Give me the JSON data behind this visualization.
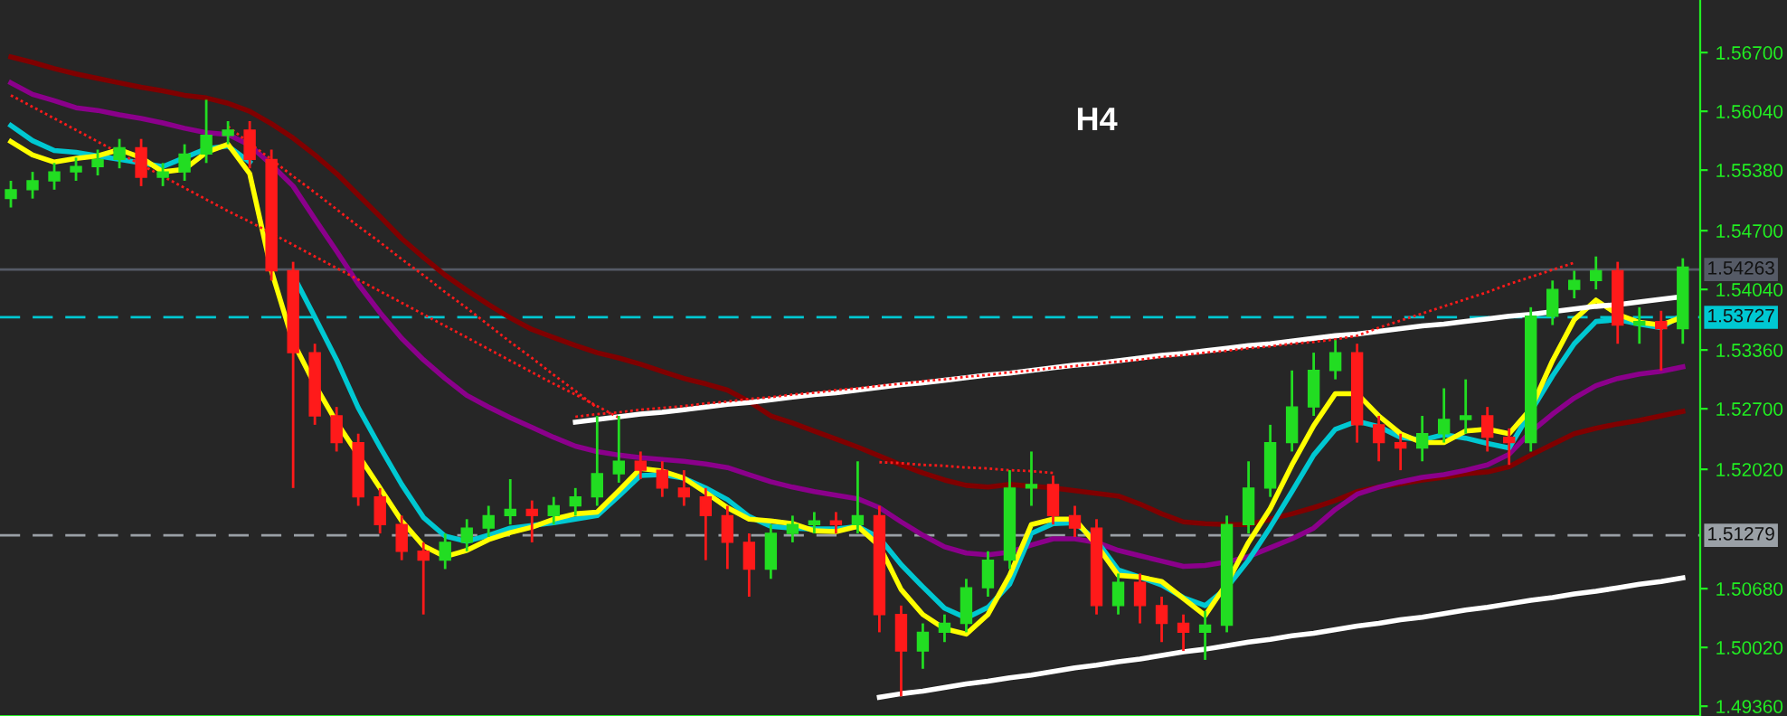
{
  "chart_data": {
    "type": "candlestick",
    "annotations": [
      "H4"
    ],
    "categories": [
      null,
      null,
      null,
      null,
      null,
      null,
      null,
      null,
      null,
      null,
      null,
      null,
      null,
      null,
      null,
      null,
      null,
      null,
      null,
      null,
      null,
      null,
      null,
      null,
      null,
      null,
      null,
      null,
      null,
      null,
      null,
      null,
      null,
      null,
      null,
      null,
      null,
      null,
      null,
      null,
      null,
      null,
      null,
      null,
      null,
      null,
      null,
      null,
      null,
      null,
      null,
      null,
      null,
      null,
      null,
      null,
      null,
      null,
      null,
      null,
      null,
      null,
      null,
      null,
      null,
      null,
      null,
      null,
      null,
      null,
      null,
      null,
      null,
      null,
      null,
      null,
      null,
      null
    ],
    "ohlc": [
      [
        1.5506,
        1.5526,
        1.5496,
        1.5516
      ],
      [
        1.5516,
        1.5536,
        1.5506,
        1.5526
      ],
      [
        1.5526,
        1.5546,
        1.5516,
        1.5536
      ],
      [
        1.5536,
        1.5552,
        1.5526,
        1.5542
      ],
      [
        1.5542,
        1.5561,
        1.5532,
        1.555
      ],
      [
        1.555,
        1.5573,
        1.554,
        1.5563
      ],
      [
        1.5563,
        1.5573,
        1.552,
        1.553
      ],
      [
        1.553,
        1.5546,
        1.552,
        1.5536
      ],
      [
        1.5536,
        1.5567,
        1.5526,
        1.5556
      ],
      [
        1.5556,
        1.5617,
        1.5546,
        1.5577
      ],
      [
        1.5577,
        1.5593,
        1.5567,
        1.5583
      ],
      [
        1.5583,
        1.5593,
        1.554,
        1.555
      ],
      [
        1.555,
        1.5561,
        1.5414,
        1.5425
      ],
      [
        1.5425,
        1.5435,
        1.5181,
        1.5333
      ],
      [
        1.5333,
        1.5343,
        1.5252,
        1.5262
      ],
      [
        1.5262,
        1.5272,
        1.5222,
        1.5232
      ],
      [
        1.5232,
        1.5242,
        1.5161,
        1.5171
      ],
      [
        1.5171,
        1.5181,
        1.513,
        1.514
      ],
      [
        1.514,
        1.515,
        1.51,
        1.511
      ],
      [
        1.511,
        1.512,
        1.5039,
        1.51
      ],
      [
        1.51,
        1.513,
        1.509,
        1.512
      ],
      [
        1.512,
        1.5146,
        1.511,
        1.5136
      ],
      [
        1.5136,
        1.5161,
        1.5126,
        1.515
      ],
      [
        1.515,
        1.5191,
        1.514,
        1.5157
      ],
      [
        1.5157,
        1.5167,
        1.512,
        1.515
      ],
      [
        1.515,
        1.5171,
        1.514,
        1.5161
      ],
      [
        1.5161,
        1.5181,
        1.515,
        1.5171
      ],
      [
        1.5171,
        1.5262,
        1.5161,
        1.5197
      ],
      [
        1.5197,
        1.5262,
        1.5187,
        1.5211
      ],
      [
        1.5211,
        1.5222,
        1.5191,
        1.5201
      ],
      [
        1.5201,
        1.5211,
        1.5171,
        1.5181
      ],
      [
        1.5181,
        1.5201,
        1.5161,
        1.5171
      ],
      [
        1.5171,
        1.5181,
        1.51,
        1.515
      ],
      [
        1.515,
        1.5161,
        1.509,
        1.512
      ],
      [
        1.512,
        1.513,
        1.5059,
        1.509
      ],
      [
        1.509,
        1.514,
        1.5079,
        1.513
      ],
      [
        1.513,
        1.515,
        1.512,
        1.514
      ],
      [
        1.514,
        1.5154,
        1.513,
        1.5144
      ],
      [
        1.5144,
        1.5154,
        1.513,
        1.514
      ],
      [
        1.514,
        1.5211,
        1.513,
        1.515
      ],
      [
        1.515,
        1.5161,
        1.5019,
        1.5039
      ],
      [
        1.5039,
        1.5049,
        1.4947,
        1.4998
      ],
      [
        1.4998,
        1.5029,
        1.4978,
        1.5019
      ],
      [
        1.5019,
        1.5039,
        1.5008,
        1.5029
      ],
      [
        1.5029,
        1.5079,
        1.5019,
        1.5069
      ],
      [
        1.5069,
        1.511,
        1.5059,
        1.51
      ],
      [
        1.51,
        1.5201,
        1.509,
        1.5181
      ],
      [
        1.5181,
        1.5222,
        1.5161,
        1.5185
      ],
      [
        1.5185,
        1.5195,
        1.514,
        1.515
      ],
      [
        1.515,
        1.5161,
        1.5126,
        1.5136
      ],
      [
        1.5136,
        1.5146,
        1.5039,
        1.5049
      ],
      [
        1.5049,
        1.5085,
        1.5039,
        1.5075
      ],
      [
        1.5075,
        1.5085,
        1.5029,
        1.5049
      ],
      [
        1.5049,
        1.5059,
        1.5008,
        1.5029
      ],
      [
        1.5029,
        1.5039,
        1.4998,
        1.5019
      ],
      [
        1.5019,
        1.5043,
        1.4988,
        1.5027
      ],
      [
        1.5027,
        1.515,
        1.5019,
        1.514
      ],
      [
        1.514,
        1.5211,
        1.513,
        1.5181
      ],
      [
        1.5181,
        1.5252,
        1.5171,
        1.5232
      ],
      [
        1.5232,
        1.5313,
        1.5222,
        1.5272
      ],
      [
        1.5272,
        1.5333,
        1.5262,
        1.5313
      ],
      [
        1.5313,
        1.5347,
        1.5303,
        1.5333
      ],
      [
        1.5333,
        1.5343,
        1.5232,
        1.5252
      ],
      [
        1.5252,
        1.5262,
        1.5211,
        1.5232
      ],
      [
        1.5232,
        1.5242,
        1.5201,
        1.5226
      ],
      [
        1.5226,
        1.5262,
        1.5211,
        1.5242
      ],
      [
        1.5242,
        1.5293,
        1.5232,
        1.5258
      ],
      [
        1.5258,
        1.5303,
        1.5242,
        1.5262
      ],
      [
        1.5262,
        1.5272,
        1.5222,
        1.5238
      ],
      [
        1.5238,
        1.5248,
        1.5207,
        1.5232
      ],
      [
        1.5232,
        1.5384,
        1.5222,
        1.5374
      ],
      [
        1.5374,
        1.5414,
        1.5364,
        1.5404
      ],
      [
        1.5404,
        1.5425,
        1.5394,
        1.5414
      ],
      [
        1.5414,
        1.5441,
        1.5404,
        1.5425
      ],
      [
        1.5425,
        1.5435,
        1.5343,
        1.5364
      ],
      [
        1.5364,
        1.5384,
        1.5343,
        1.5368
      ],
      [
        1.5368,
        1.538,
        1.5313,
        1.536
      ],
      [
        1.536,
        1.5439,
        1.5343,
        1.5429
      ]
    ],
    "series": [
      {
        "type": "line",
        "color": "#800000",
        "values": [
          1.5665,
          1.5659,
          1.5652,
          1.5646,
          1.5641,
          1.5636,
          1.5631,
          1.5627,
          1.5622,
          1.5619,
          1.5613,
          1.5604,
          1.559,
          1.5574,
          1.5555,
          1.5534,
          1.551,
          1.5486,
          1.5461,
          1.544,
          1.542,
          1.5403,
          1.5387,
          1.5372,
          1.5359,
          1.535,
          1.5341,
          1.5333,
          1.5327,
          1.532,
          1.5312,
          1.5304,
          1.5298,
          1.5291,
          1.5278,
          1.5262,
          1.5254,
          1.5245,
          1.5236,
          1.5227,
          1.5217,
          1.5207,
          1.5198,
          1.519,
          1.5184,
          1.5182,
          1.5185,
          1.5183,
          1.5181,
          1.5178,
          1.5175,
          1.5172,
          1.5163,
          1.5152,
          1.5143,
          1.5141,
          1.514,
          1.514,
          1.5146,
          1.5152,
          1.5159,
          1.5167,
          1.5177,
          1.5182,
          1.5186,
          1.519,
          1.5193,
          1.5197,
          1.5199,
          1.5205,
          1.5218,
          1.523,
          1.5242,
          1.5248,
          1.5253,
          1.5257,
          1.5262,
          1.5267
        ]
      },
      {
        "type": "line",
        "color": "#8b008b",
        "values": [
          1.5636,
          1.5623,
          1.5616,
          1.5608,
          1.5605,
          1.56,
          1.5596,
          1.5591,
          1.5585,
          1.558,
          1.5578,
          1.5566,
          1.5544,
          1.552,
          1.5483,
          1.5447,
          1.541,
          1.5378,
          1.5349,
          1.5325,
          1.5304,
          1.5285,
          1.5272,
          1.526,
          1.5249,
          1.5238,
          1.5228,
          1.5222,
          1.5218,
          1.5215,
          1.5213,
          1.5211,
          1.5208,
          1.5204,
          1.5196,
          1.5188,
          1.5182,
          1.5177,
          1.5173,
          1.5169,
          1.5159,
          1.5143,
          1.5128,
          1.5115,
          1.5108,
          1.5106,
          1.5109,
          1.5117,
          1.5124,
          1.5124,
          1.512,
          1.5111,
          1.5105,
          1.5099,
          1.5093,
          1.5094,
          1.5098,
          1.5104,
          1.5114,
          1.5124,
          1.5136,
          1.5157,
          1.5174,
          1.5182,
          1.5188,
          1.5193,
          1.5196,
          1.5201,
          1.5207,
          1.5219,
          1.5244,
          1.5264,
          1.5282,
          1.5296,
          1.5304,
          1.5309,
          1.5312,
          1.5317
        ]
      },
      {
        "type": "line",
        "color": "#00c8d2",
        "values": [
          1.5588,
          1.5571,
          1.556,
          1.5558,
          1.5554,
          1.555,
          1.5546,
          1.5542,
          1.5552,
          1.5562,
          1.5565,
          1.5547,
          null,
          1.542,
          1.5373,
          1.5325,
          1.5271,
          1.5227,
          1.5185,
          1.5148,
          1.5127,
          1.5121,
          1.5128,
          1.5136,
          1.5139,
          1.5142,
          1.5146,
          1.515,
          1.5172,
          1.5195,
          1.5196,
          1.5192,
          1.5181,
          1.5168,
          1.5149,
          1.5138,
          1.5136,
          1.5135,
          1.5135,
          1.5138,
          1.5125,
          1.5095,
          1.507,
          1.5046,
          1.5035,
          1.5047,
          1.5073,
          1.513,
          1.5141,
          1.5142,
          1.5122,
          1.5089,
          1.5081,
          1.5072,
          1.5058,
          1.5049,
          1.5069,
          1.51,
          1.5137,
          1.5177,
          1.5218,
          1.5247,
          1.5256,
          1.525,
          1.5238,
          1.5235,
          1.5241,
          1.5237,
          1.5231,
          1.5226,
          1.5267,
          1.5307,
          1.5343,
          1.5368,
          1.537,
          1.5365,
          1.5361,
          1.5376
        ]
      },
      {
        "type": "line",
        "color": "#ffff00",
        "values": [
          1.557,
          1.5555,
          1.5547,
          1.5551,
          1.5554,
          1.5561,
          1.5552,
          1.5536,
          1.5539,
          1.5558,
          1.5567,
          1.5534,
          1.5425,
          1.5345,
          1.5297,
          1.5255,
          1.5218,
          1.5181,
          1.5144,
          1.5116,
          1.5104,
          1.5111,
          1.5123,
          1.5131,
          1.5137,
          1.5146,
          1.5152,
          1.5154,
          1.5178,
          1.5203,
          1.52,
          1.5192,
          1.5176,
          1.5159,
          1.5146,
          1.5144,
          1.5141,
          1.5133,
          1.5132,
          1.5138,
          1.5116,
          1.5067,
          1.5039,
          1.5023,
          1.5017,
          1.5039,
          1.5083,
          1.514,
          1.5146,
          1.5146,
          1.5117,
          1.5083,
          1.5081,
          1.5076,
          1.5057,
          1.5038,
          1.5074,
          1.512,
          1.5158,
          1.5207,
          1.5251,
          1.5287,
          1.5287,
          1.5262,
          1.5242,
          1.5232,
          1.5232,
          1.5245,
          1.5247,
          1.5242,
          1.527,
          1.5324,
          1.537,
          1.5392,
          1.5376,
          1.5367,
          1.5364,
          1.5373
        ]
      },
      {
        "type": "line",
        "color": "#ffffff",
        "values": [
          null,
          null,
          null,
          null,
          null,
          null,
          null,
          null,
          null,
          null,
          null,
          null,
          null,
          null,
          null,
          null,
          null,
          null,
          null,
          null,
          null,
          null,
          null,
          null,
          null,
          null,
          1.5255,
          1.5258,
          1.5261,
          1.5264,
          1.5266,
          1.5269,
          1.5272,
          1.5275,
          1.5277,
          1.528,
          1.5283,
          1.5286,
          1.5288,
          1.5291,
          1.5294,
          1.5297,
          1.5299,
          1.5302,
          1.5305,
          1.5308,
          1.531,
          1.5313,
          1.5316,
          1.5319,
          1.5321,
          1.5324,
          1.5327,
          1.533,
          1.5332,
          1.5335,
          1.5338,
          1.5341,
          1.5343,
          1.5346,
          1.5349,
          1.5352,
          1.5354,
          1.5357,
          1.536,
          1.5363,
          1.5365,
          1.5368,
          1.5371,
          1.5374,
          1.5376,
          1.5379,
          1.5382,
          1.5385,
          1.5387,
          1.539,
          1.5393,
          1.5396
        ]
      },
      {
        "type": "line",
        "color": "#ffffff",
        "values": [
          null,
          null,
          null,
          null,
          null,
          null,
          null,
          null,
          null,
          null,
          null,
          null,
          null,
          null,
          null,
          null,
          null,
          null,
          null,
          null,
          null,
          null,
          null,
          null,
          null,
          null,
          null,
          null,
          null,
          null,
          null,
          null,
          null,
          null,
          null,
          null,
          null,
          null,
          null,
          null,
          1.4946,
          1.495,
          1.4953,
          1.4957,
          1.4961,
          1.4964,
          1.4968,
          1.4971,
          1.4975,
          1.4979,
          1.4982,
          1.4986,
          1.4989,
          1.4993,
          1.4997,
          1.5,
          1.5004,
          1.5008,
          1.5011,
          1.5015,
          1.5018,
          1.5022,
          1.5026,
          1.5029,
          1.5033,
          1.5036,
          1.504,
          1.5044,
          1.5047,
          1.5051,
          1.5055,
          1.5058,
          1.5062,
          1.5065,
          1.5069,
          1.5073,
          1.5076,
          1.508
        ]
      },
      {
        "type": "line",
        "color": "#ff1a1a",
        "line_style": "dotted",
        "values": [
          1.5622,
          1.5609,
          1.5596,
          1.5583,
          1.557,
          1.5557,
          1.5544,
          1.5531,
          1.5518,
          1.5505,
          1.5492,
          1.548,
          1.5467,
          1.5454,
          1.5441,
          1.5428,
          1.5415,
          1.5402,
          1.5389,
          1.5376,
          1.5363,
          1.535,
          1.5337,
          1.5324,
          1.5311,
          1.5298,
          1.5286,
          1.5273,
          1.526,
          null,
          null,
          null,
          null,
          null,
          null,
          null,
          null,
          null,
          null,
          null,
          null,
          null,
          null,
          null,
          null,
          null,
          null,
          null,
          null,
          null,
          null,
          null,
          null,
          null,
          null,
          null,
          null,
          null,
          null,
          null,
          null,
          null,
          null,
          null,
          null,
          null,
          null,
          null,
          null,
          null,
          null,
          null,
          null,
          null,
          null,
          null,
          null,
          null
        ]
      },
      {
        "type": "line",
        "color": "#ff1a1a",
        "line_style": "dotted",
        "values": [
          null,
          null,
          null,
          null,
          null,
          null,
          null,
          null,
          null,
          null,
          1.5587,
          1.5568,
          1.555,
          1.5531,
          1.5513,
          1.5494,
          1.5475,
          1.5457,
          1.5438,
          1.542,
          1.5401,
          1.5383,
          1.5364,
          1.5345,
          1.5327,
          1.5308,
          1.529,
          1.5271,
          null,
          null,
          null,
          null,
          null,
          null,
          null,
          null,
          null,
          null,
          null,
          null,
          null,
          null,
          null,
          null,
          null,
          null,
          null,
          null,
          null,
          null,
          null,
          null,
          null,
          null,
          null,
          null,
          null,
          null,
          null,
          null,
          null,
          null,
          null,
          null,
          null,
          null,
          null,
          null,
          null,
          null,
          null,
          null,
          null,
          null,
          null,
          null,
          null,
          null
        ]
      },
      {
        "type": "line",
        "color": "#ff1a1a",
        "line_style": "dotted",
        "values": [
          null,
          null,
          null,
          null,
          null,
          null,
          null,
          null,
          null,
          null,
          null,
          null,
          null,
          null,
          null,
          null,
          null,
          null,
          null,
          null,
          null,
          null,
          null,
          null,
          null,
          null,
          null,
          null,
          null,
          null,
          null,
          null,
          null,
          null,
          null,
          null,
          null,
          null,
          null,
          null,
          1.521,
          1.5209,
          1.5207,
          1.5206,
          1.5204,
          1.5203,
          1.5201,
          1.52,
          1.5198,
          null,
          null,
          null,
          null,
          null,
          null,
          null,
          null,
          null,
          null,
          null,
          null,
          null,
          null,
          null,
          null,
          null,
          null,
          null,
          null,
          null,
          null,
          null,
          null,
          null,
          null,
          null,
          null,
          null
        ]
      },
      {
        "type": "line",
        "color": "#ff1a1a",
        "line_style": "dotted",
        "values": [
          null,
          null,
          null,
          null,
          null,
          null,
          null,
          null,
          null,
          null,
          null,
          null,
          null,
          null,
          null,
          null,
          null,
          null,
          null,
          null,
          null,
          null,
          null,
          null,
          null,
          null,
          1.5261,
          1.5264,
          1.5266,
          1.5269,
          1.5271,
          1.5273,
          1.5276,
          1.5278,
          1.5281,
          1.5283,
          1.5286,
          1.5288,
          1.5291,
          1.5293,
          1.5296,
          1.5298,
          1.5301,
          1.5303,
          1.5306,
          1.5308,
          1.5311,
          1.5313,
          1.5316,
          1.5318,
          1.5321,
          1.5323,
          1.5325,
          1.5328,
          1.533,
          1.5333,
          1.5335,
          1.5338,
          1.534,
          1.5343,
          1.5345,
          1.5348,
          1.5352,
          1.5361,
          1.5369,
          1.5377,
          1.5385,
          1.5393,
          1.5401,
          1.541,
          1.5418,
          1.5426,
          1.5434,
          null,
          null,
          null,
          null,
          null
        ]
      }
    ],
    "ref_lines": [
      {
        "axis": "y",
        "value": 1.54263,
        "label": "1.54263",
        "color": "#555a66",
        "line_style": "solid"
      },
      {
        "axis": "y",
        "value": 1.53727,
        "label": "1.53727",
        "color": "#00c8d2",
        "line_style": "dashed"
      },
      {
        "axis": "y",
        "value": 1.51279,
        "label": "1.51279",
        "color": "#9aa0a6",
        "line_style": "dashed"
      }
    ],
    "ylim": [
      1.4925,
      1.5729
    ],
    "yticks": [
      {
        "value": 1.4936,
        "label": "1.49360"
      },
      {
        "value": 1.5002,
        "label": "1.50020"
      },
      {
        "value": 1.5068,
        "label": "1.50680"
      },
      {
        "value": 1.5202,
        "label": "1.52020"
      },
      {
        "value": 1.527,
        "label": "1.52700"
      },
      {
        "value": 1.5336,
        "label": "1.53360"
      },
      {
        "value": 1.5404,
        "label": "1.54040"
      },
      {
        "value": 1.547,
        "label": "1.54700"
      },
      {
        "value": 1.5538,
        "label": "1.55380"
      },
      {
        "value": 1.5604,
        "label": "1.56040"
      },
      {
        "value": 1.567,
        "label": "1.56700"
      }
    ],
    "tick_labels": "y",
    "grid": false,
    "legend": false
  }
}
